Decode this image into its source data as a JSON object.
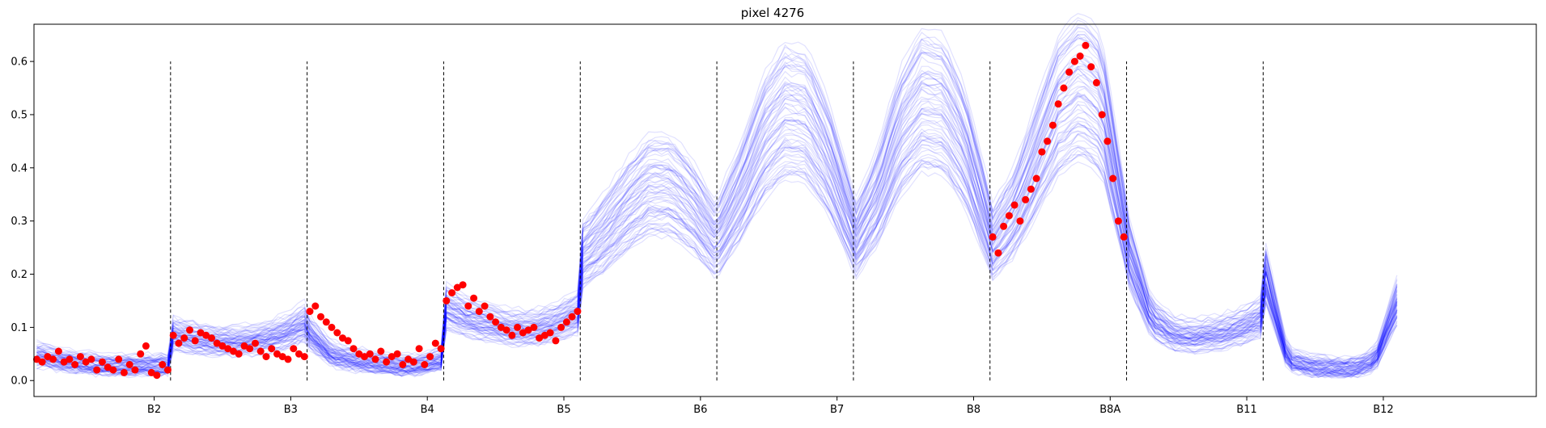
{
  "chart_data": {
    "type": "line",
    "title": "pixel 4276",
    "xlabel": "",
    "ylabel": "",
    "ylim": [
      -0.03,
      0.67
    ],
    "yticks": [
      0.0,
      0.1,
      0.2,
      0.3,
      0.4,
      0.5,
      0.6
    ],
    "ytick_labels": [
      "0.0",
      "0.1",
      "0.2",
      "0.3",
      "0.4",
      "0.5",
      "0.6"
    ],
    "xlim": [
      0,
      1100
    ],
    "bands": [
      {
        "name": "B2",
        "start": 0
      },
      {
        "name": "B3",
        "start": 100
      },
      {
        "name": "B4",
        "start": 200
      },
      {
        "name": "B5",
        "start": 300
      },
      {
        "name": "B6",
        "start": 400
      },
      {
        "name": "B7",
        "start": 500
      },
      {
        "name": "B8",
        "start": 600
      },
      {
        "name": "B8A",
        "start": 700
      },
      {
        "name": "B11",
        "start": 800
      },
      {
        "name": "B12",
        "start": 900
      }
    ],
    "xticks": [
      88,
      188,
      288,
      388,
      488,
      588,
      688,
      788,
      888,
      988
    ],
    "xtick_labels": [
      "B2",
      "B3",
      "B4",
      "B5",
      "B6",
      "B7",
      "B8",
      "B8A",
      "B11",
      "B12"
    ],
    "separators": {
      "x": [
        100,
        200,
        300,
        400,
        500,
        600,
        700,
        800,
        900
      ],
      "ymin": 0.0,
      "ymax": 0.6,
      "style": "dashed",
      "color": "#000000"
    },
    "series_style": {
      "reference_color": "#0000ff",
      "reference_alpha": 0.12,
      "observed_color": "#ff0000"
    },
    "reference_band_profiles": [
      [
        0.05,
        0.04,
        0.035,
        0.03,
        0.03,
        0.03,
        0.03
      ],
      [
        0.09,
        0.08,
        0.075,
        0.075,
        0.08,
        0.09,
        0.11
      ],
      [
        0.09,
        0.05,
        0.04,
        0.035,
        0.03,
        0.03,
        0.04
      ],
      [
        0.14,
        0.12,
        0.11,
        0.1,
        0.1,
        0.11,
        0.13
      ],
      [
        0.24,
        0.28,
        0.33,
        0.37,
        0.37,
        0.33,
        0.27
      ],
      [
        0.28,
        0.36,
        0.46,
        0.51,
        0.5,
        0.42,
        0.3
      ],
      [
        0.27,
        0.35,
        0.47,
        0.53,
        0.52,
        0.44,
        0.3
      ],
      [
        0.26,
        0.32,
        0.42,
        0.52,
        0.56,
        0.52,
        0.3
      ],
      [
        0.24,
        0.12,
        0.09,
        0.085,
        0.09,
        0.1,
        0.12
      ],
      [
        0.2,
        0.04,
        0.03,
        0.025,
        0.025,
        0.04,
        0.15
      ]
    ],
    "observed_points": [
      {
        "band": "B2",
        "x": [
          2,
          6,
          10,
          14,
          18,
          22,
          26,
          30,
          34,
          38,
          42,
          46,
          50,
          54,
          58,
          62,
          66,
          70,
          74,
          78,
          82,
          86,
          90,
          94,
          98
        ],
        "y": [
          0.04,
          0.035,
          0.045,
          0.04,
          0.055,
          0.035,
          0.04,
          0.03,
          0.045,
          0.035,
          0.04,
          0.02,
          0.035,
          0.025,
          0.02,
          0.04,
          0.015,
          0.03,
          0.02,
          0.05,
          0.065,
          0.015,
          0.01,
          0.03,
          0.02
        ]
      },
      {
        "band": "B3",
        "x": [
          102,
          106,
          110,
          114,
          118,
          122,
          126,
          130,
          134,
          138,
          142,
          146,
          150,
          154,
          158,
          162,
          166,
          170,
          174,
          178,
          182,
          186,
          190,
          194,
          198
        ],
        "y": [
          0.085,
          0.07,
          0.08,
          0.095,
          0.075,
          0.09,
          0.085,
          0.08,
          0.07,
          0.065,
          0.06,
          0.055,
          0.05,
          0.065,
          0.06,
          0.07,
          0.055,
          0.045,
          0.06,
          0.05,
          0.045,
          0.04,
          0.06,
          0.05,
          0.045
        ]
      },
      {
        "band": "B4",
        "x": [
          202,
          206,
          210,
          214,
          218,
          222,
          226,
          230,
          234,
          238,
          242,
          246,
          250,
          254,
          258,
          262,
          266,
          270,
          274,
          278,
          282,
          286,
          290,
          294,
          298
        ],
        "y": [
          0.13,
          0.14,
          0.12,
          0.11,
          0.1,
          0.09,
          0.08,
          0.075,
          0.06,
          0.05,
          0.045,
          0.05,
          0.04,
          0.055,
          0.035,
          0.045,
          0.05,
          0.03,
          0.04,
          0.035,
          0.06,
          0.03,
          0.045,
          0.07,
          0.06
        ]
      },
      {
        "band": "B5",
        "x": [
          302,
          306,
          310,
          314,
          318,
          322,
          326,
          330,
          334,
          338,
          342,
          346,
          350,
          354,
          358,
          362,
          366,
          370,
          374,
          378,
          382,
          386,
          390,
          394,
          398
        ],
        "y": [
          0.15,
          0.165,
          0.175,
          0.18,
          0.14,
          0.155,
          0.13,
          0.14,
          0.12,
          0.11,
          0.1,
          0.095,
          0.085,
          0.1,
          0.09,
          0.095,
          0.1,
          0.08,
          0.085,
          0.09,
          0.075,
          0.1,
          0.11,
          0.12,
          0.13
        ]
      },
      {
        "band": "B8A",
        "x": [
          702,
          706,
          710,
          714,
          718,
          722,
          726,
          730,
          734,
          738,
          742,
          746,
          750,
          754,
          758,
          762,
          766,
          770,
          774,
          778,
          782,
          786,
          790,
          794,
          798
        ],
        "y": [
          0.27,
          0.24,
          0.29,
          0.31,
          0.33,
          0.3,
          0.34,
          0.36,
          0.38,
          0.43,
          0.45,
          0.48,
          0.52,
          0.55,
          0.58,
          0.6,
          0.61,
          0.63,
          0.59,
          0.56,
          0.5,
          0.45,
          0.38,
          0.3,
          0.27
        ]
      }
    ]
  }
}
